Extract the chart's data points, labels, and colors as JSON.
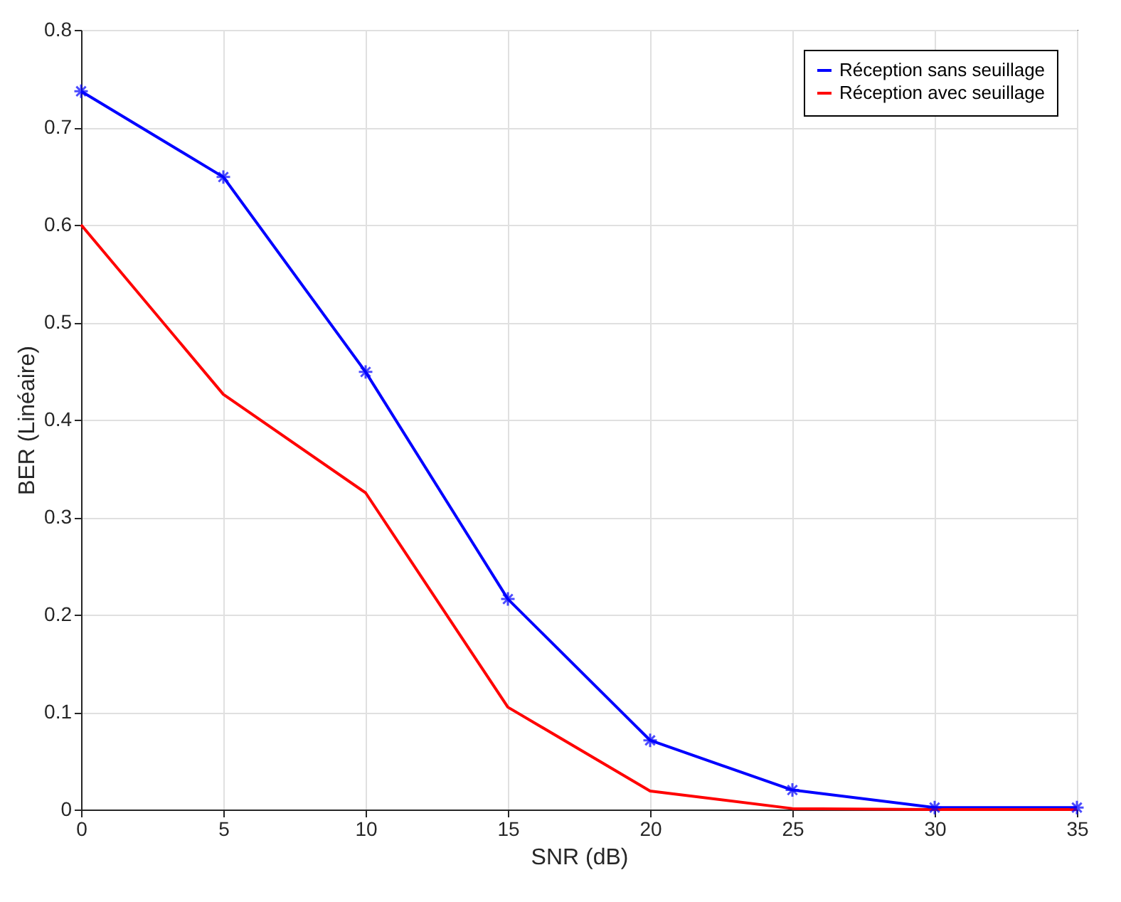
{
  "chart_data": {
    "type": "line",
    "xlabel": "SNR (dB)",
    "ylabel": "BER (Linéaire)",
    "x": [
      0,
      5,
      10,
      15,
      20,
      25,
      30,
      35
    ],
    "series": [
      {
        "name": "Réception sans seuillage",
        "color": "#0000ff",
        "marker": "cross",
        "values": [
          0.737,
          0.649,
          0.449,
          0.216,
          0.071,
          0.02,
          0.002,
          0.002
        ]
      },
      {
        "name": "Réception avec seuillage",
        "color": "#ff0000",
        "marker": "none",
        "values": [
          0.6,
          0.426,
          0.325,
          0.105,
          0.019,
          0.001,
          0,
          0
        ]
      }
    ],
    "xlim": [
      0,
      35
    ],
    "xticks": [
      0,
      5,
      10,
      15,
      20,
      25,
      30,
      35
    ],
    "ylim": [
      0,
      0.8
    ],
    "yticks": [
      0,
      0.1,
      0.2,
      0.3,
      0.4,
      0.5,
      0.6,
      0.7,
      0.8
    ],
    "grid": true,
    "legend": "top right",
    "line_style": "solid"
  }
}
